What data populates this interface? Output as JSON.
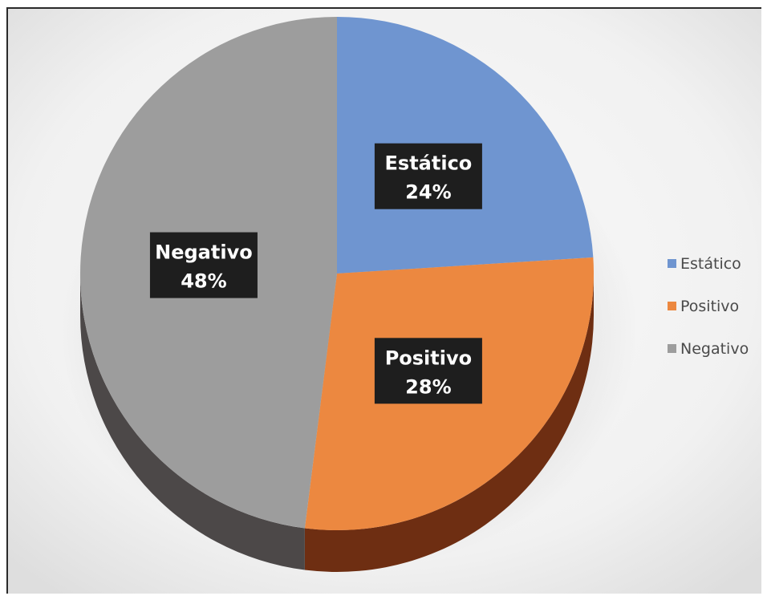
{
  "chart_data": {
    "type": "pie",
    "style": "3d",
    "categories": [
      "Estático",
      "Positivo",
      "Negativo"
    ],
    "values": [
      24,
      28,
      48
    ],
    "data_labels": [
      "24%",
      "28%",
      "48%"
    ],
    "colors": [
      "#6f95d0",
      "#ec8840",
      "#9d9d9d"
    ],
    "side_colors": [
      "#3d5a8a",
      "#6e2e12",
      "#4c4848"
    ],
    "legend": {
      "position": "right",
      "entries": [
        "Estático",
        "Positivo",
        "Negativo"
      ]
    }
  }
}
